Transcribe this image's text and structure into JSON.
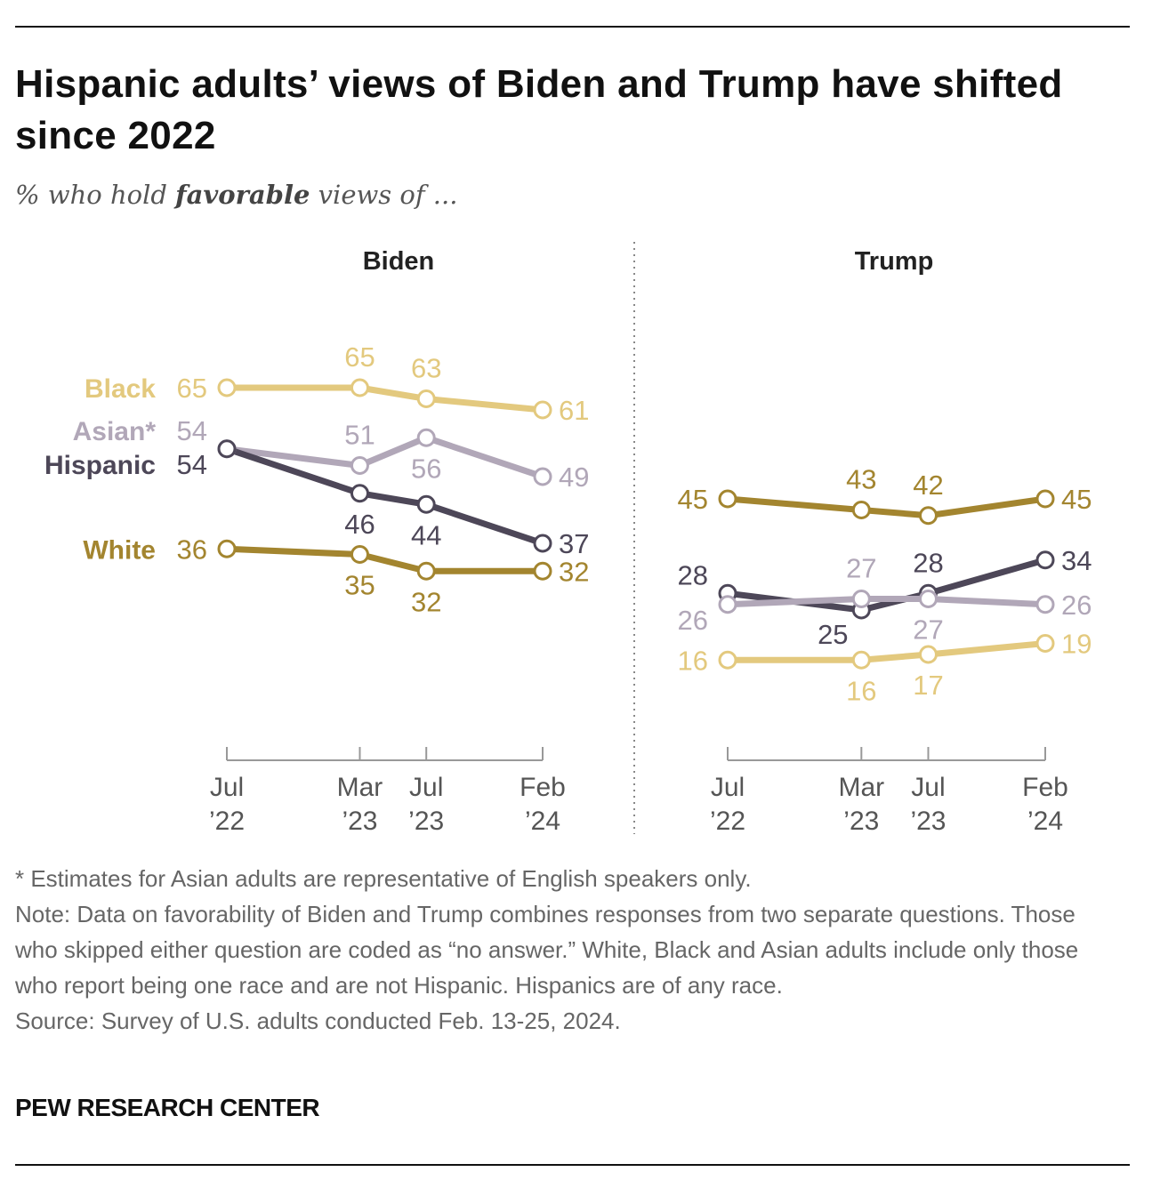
{
  "title": "Hispanic adults’ views of Biden and Trump have shifted since 2022",
  "subtitle": {
    "pre": "% who hold ",
    "bold": "favorable",
    "post": " views of ..."
  },
  "chart_data": [
    {
      "type": "line",
      "title": "Biden",
      "x": [
        "Jul '22",
        "Mar '23",
        "Jul '23",
        "Feb '24"
      ],
      "x_months": [
        0,
        8,
        12,
        19
      ],
      "tick_labels": [
        [
          "Jul",
          "’22"
        ],
        [
          "Mar",
          "’23"
        ],
        [
          "Jul",
          "’23"
        ],
        [
          "Feb",
          "’24"
        ]
      ],
      "series": [
        {
          "name": "Black",
          "color": "#e3c97e",
          "values": [
            65,
            65,
            63,
            61
          ]
        },
        {
          "name": "Asian*",
          "color": "#b1a7b8",
          "values": [
            54,
            51,
            56,
            49
          ]
        },
        {
          "name": "Hispanic",
          "color": "#4d4758",
          "values": [
            54,
            46,
            44,
            37
          ]
        },
        {
          "name": "White",
          "color": "#a3852f",
          "values": [
            36,
            35,
            32,
            32
          ]
        }
      ]
    },
    {
      "type": "line",
      "title": "Trump",
      "x": [
        "Jul '22",
        "Mar '23",
        "Jul '23",
        "Feb '24"
      ],
      "x_months": [
        0,
        8,
        12,
        19
      ],
      "tick_labels": [
        [
          "Jul",
          "’22"
        ],
        [
          "Mar",
          "’23"
        ],
        [
          "Jul",
          "’23"
        ],
        [
          "Feb",
          "’24"
        ]
      ],
      "series": [
        {
          "name": "White",
          "color": "#a3852f",
          "values": [
            45,
            43,
            42,
            45
          ]
        },
        {
          "name": "Hispanic",
          "color": "#4d4758",
          "values": [
            28,
            25,
            28,
            34
          ]
        },
        {
          "name": "Asian*",
          "color": "#b1a7b8",
          "values": [
            26,
            27,
            27,
            26
          ]
        },
        {
          "name": "Black",
          "color": "#e3c97e",
          "values": [
            16,
            16,
            17,
            19
          ]
        }
      ]
    }
  ],
  "notes": {
    "asterisk": "* Estimates for Asian adults are representative of English speakers only.",
    "note": "Note: Data on favorability of Biden and Trump combines responses from two separate questions. Those who skipped either question are coded as “no answer.” White, Black and Asian adults include only those who report being one race and are not Hispanic. Hispanics are of any race.",
    "source": "Source: Survey of U.S. adults conducted Feb. 13-25, 2024."
  },
  "brand": "PEW RESEARCH CENTER"
}
